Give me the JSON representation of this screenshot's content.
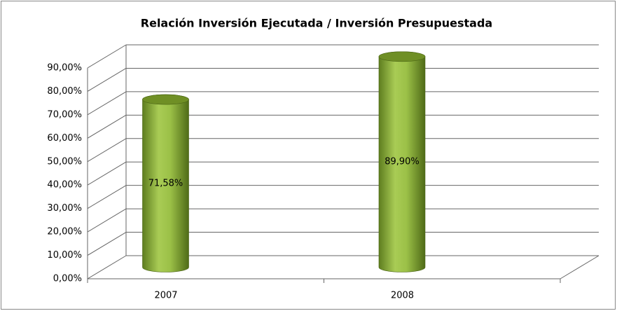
{
  "chart_data": {
    "type": "bar",
    "title": "Relación Inversión  Ejecutada / Inversión Presupuestada",
    "categories": [
      "2007",
      "2008"
    ],
    "values": [
      71.58,
      89.9
    ],
    "value_labels": [
      "71,58%",
      "89,90%"
    ],
    "color": "#8fb33a",
    "ylim": [
      0,
      90
    ],
    "yticks": [
      {
        "value": 0,
        "label": "0,00%"
      },
      {
        "value": 10,
        "label": "10,00%"
      },
      {
        "value": 20,
        "label": "20,00%"
      },
      {
        "value": 30,
        "label": "30,00%"
      },
      {
        "value": 40,
        "label": "40,00%"
      },
      {
        "value": 50,
        "label": "50,00%"
      },
      {
        "value": 60,
        "label": "60,00%"
      },
      {
        "value": 70,
        "label": "70,00%"
      },
      {
        "value": 80,
        "label": "80,00%"
      },
      {
        "value": 90,
        "label": "90,00%"
      }
    ],
    "grid": true
  }
}
